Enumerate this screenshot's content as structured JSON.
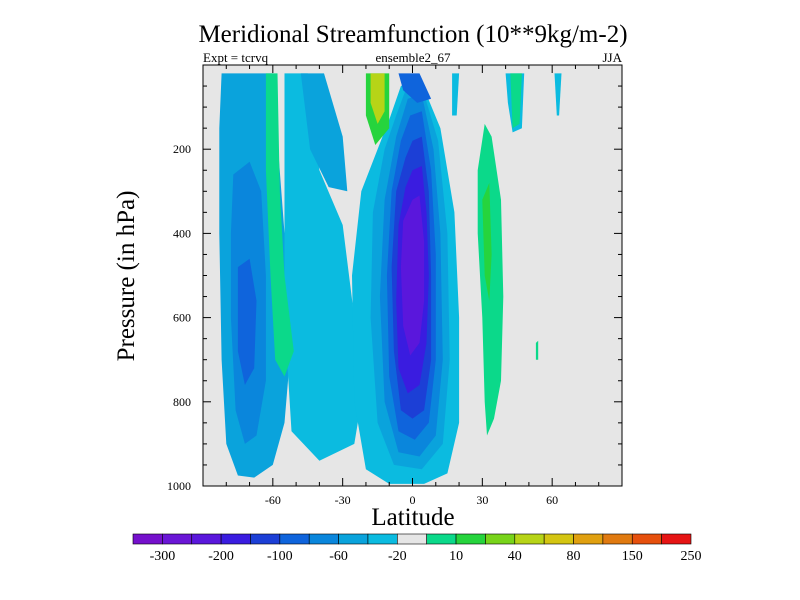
{
  "chart_data": {
    "type": "contour",
    "title": "Meridional Streamfunction (10**9kg/m-2)",
    "subtitle_left": "Expt = tcrvq",
    "subtitle_center": "ensemble2_67",
    "subtitle_right": "JJA",
    "xlabel": "Latitude",
    "ylabel": "Pressure (in hPa)",
    "xlim": [
      -90,
      90
    ],
    "ylim": [
      1000,
      0
    ],
    "x_ticks": [
      -60,
      -30,
      0,
      30,
      60
    ],
    "x_tick_labels": [
      "-60",
      "-30",
      "0",
      "30",
      "60"
    ],
    "y_ticks": [
      200,
      400,
      600,
      800,
      1000
    ],
    "y_tick_labels": [
      "200",
      "400",
      "600",
      "800",
      "1000"
    ],
    "background_color": "#e6e6e6",
    "colorbar": {
      "colors": [
        "#7510cc",
        "#6a16d6",
        "#5a17dc",
        "#3a1ce0",
        "#1c3fd6",
        "#0f64dc",
        "#0a86dc",
        "#0aa3dc",
        "#0bbbe0",
        "#e6e6e6",
        "#0bd98a",
        "#26d43d",
        "#78d41a",
        "#b7d417",
        "#d4c512",
        "#e0a010",
        "#e07a10",
        "#e6500d",
        "#e61414"
      ],
      "labels": [
        "-300",
        "-200",
        "-100",
        "-60",
        "-20",
        "10",
        "40",
        "80",
        "150",
        "250"
      ]
    },
    "regions": [
      {
        "name": "southern-cell-outer",
        "color": "#0aa3dc",
        "points": [
          [
            -82,
            20
          ],
          [
            -60,
            20
          ],
          [
            -58,
            180
          ],
          [
            -55,
            400
          ],
          [
            -52,
            650
          ],
          [
            -55,
            850
          ],
          [
            -60,
            950
          ],
          [
            -68,
            980
          ],
          [
            -75,
            975
          ],
          [
            -80,
            900
          ],
          [
            -82,
            700
          ],
          [
            -83,
            400
          ],
          [
            -83,
            150
          ]
        ]
      },
      {
        "name": "southern-cell-mid",
        "color": "#0a86dc",
        "points": [
          [
            -77,
            260
          ],
          [
            -70,
            230
          ],
          [
            -65,
            300
          ],
          [
            -63,
            500
          ],
          [
            -63,
            750
          ],
          [
            -67,
            880
          ],
          [
            -72,
            900
          ],
          [
            -76,
            820
          ],
          [
            -78,
            600
          ],
          [
            -78,
            400
          ]
        ]
      },
      {
        "name": "southern-cell-core",
        "color": "#0f64dc",
        "points": [
          [
            -75,
            480
          ],
          [
            -70,
            460
          ],
          [
            -67,
            560
          ],
          [
            -68,
            720
          ],
          [
            -72,
            760
          ],
          [
            -75,
            680
          ]
        ]
      },
      {
        "name": "southern-upper-light",
        "color": "#0bbbe0",
        "points": [
          [
            -55,
            20
          ],
          [
            -45,
            20
          ],
          [
            -40,
            250
          ],
          [
            -30,
            380
          ],
          [
            -25,
            600
          ],
          [
            -22,
            800
          ],
          [
            -25,
            900
          ],
          [
            -40,
            940
          ],
          [
            -52,
            870
          ],
          [
            -55,
            600
          ],
          [
            -55,
            300
          ]
        ]
      },
      {
        "name": "southern-subsid",
        "color": "#0aa3dc",
        "points": [
          [
            -48,
            20
          ],
          [
            -38,
            20
          ],
          [
            -30,
            170
          ],
          [
            -28,
            300
          ],
          [
            -36,
            290
          ],
          [
            -44,
            200
          ]
        ]
      },
      {
        "name": "southern-green-strip",
        "color": "#0bd98a",
        "points": [
          [
            -63,
            20
          ],
          [
            -58,
            20
          ],
          [
            -57,
            300
          ],
          [
            -55,
            500
          ],
          [
            -51,
            680
          ],
          [
            -55,
            740
          ],
          [
            -59,
            700
          ],
          [
            -61,
            500
          ],
          [
            -63,
            250
          ]
        ]
      },
      {
        "name": "central-cell-outer",
        "color": "#0bbbe0",
        "points": [
          [
            -5,
            50
          ],
          [
            3,
            30
          ],
          [
            12,
            150
          ],
          [
            18,
            350
          ],
          [
            20,
            600
          ],
          [
            20,
            850
          ],
          [
            15,
            970
          ],
          [
            5,
            995
          ],
          [
            -10,
            995
          ],
          [
            -20,
            960
          ],
          [
            -25,
            800
          ],
          [
            -26,
            500
          ],
          [
            -22,
            300
          ],
          [
            -15,
            200
          ],
          [
            -10,
            130
          ]
        ]
      },
      {
        "name": "central-cell-2",
        "color": "#0aa3dc",
        "points": [
          [
            -3,
            60
          ],
          [
            4,
            50
          ],
          [
            11,
            180
          ],
          [
            15,
            400
          ],
          [
            16,
            700
          ],
          [
            13,
            900
          ],
          [
            4,
            960
          ],
          [
            -8,
            950
          ],
          [
            -15,
            850
          ],
          [
            -18,
            600
          ],
          [
            -17,
            350
          ],
          [
            -12,
            200
          ],
          [
            -7,
            120
          ]
        ]
      },
      {
        "name": "central-cell-3",
        "color": "#0a86dc",
        "points": [
          [
            -2,
            80
          ],
          [
            4,
            70
          ],
          [
            9,
            200
          ],
          [
            12,
            400
          ],
          [
            13,
            700
          ],
          [
            10,
            880
          ],
          [
            3,
            930
          ],
          [
            -6,
            920
          ],
          [
            -12,
            800
          ],
          [
            -14,
            550
          ],
          [
            -12,
            320
          ],
          [
            -7,
            170
          ]
        ]
      },
      {
        "name": "central-cell-4",
        "color": "#0f64dc",
        "points": [
          [
            -1,
            120
          ],
          [
            4,
            110
          ],
          [
            8,
            250
          ],
          [
            10,
            450
          ],
          [
            10,
            700
          ],
          [
            7,
            850
          ],
          [
            1,
            890
          ],
          [
            -6,
            870
          ],
          [
            -10,
            740
          ],
          [
            -11,
            500
          ],
          [
            -9,
            300
          ],
          [
            -5,
            180
          ]
        ]
      },
      {
        "name": "central-cell-5",
        "color": "#1c3fd6",
        "points": [
          [
            0,
            180
          ],
          [
            4,
            170
          ],
          [
            7,
            300
          ],
          [
            8,
            500
          ],
          [
            8,
            700
          ],
          [
            5,
            820
          ],
          [
            0,
            840
          ],
          [
            -5,
            820
          ],
          [
            -8,
            680
          ],
          [
            -9,
            480
          ],
          [
            -7,
            300
          ],
          [
            -3,
            220
          ]
        ]
      },
      {
        "name": "central-cell-6",
        "color": "#3a1ce0",
        "points": [
          [
            0,
            250
          ],
          [
            4,
            240
          ],
          [
            6,
            350
          ],
          [
            7,
            500
          ],
          [
            6,
            660
          ],
          [
            3,
            760
          ],
          [
            -2,
            780
          ],
          [
            -6,
            720
          ],
          [
            -7,
            560
          ],
          [
            -6,
            380
          ],
          [
            -3,
            290
          ]
        ]
      },
      {
        "name": "central-cell-core",
        "color": "#5a17dc",
        "points": [
          [
            0,
            320
          ],
          [
            3,
            310
          ],
          [
            5,
            420
          ],
          [
            5,
            560
          ],
          [
            3,
            660
          ],
          [
            -1,
            690
          ],
          [
            -4,
            620
          ],
          [
            -5,
            480
          ],
          [
            -4,
            370
          ]
        ]
      },
      {
        "name": "central-top-dark",
        "color": "#0f64dc",
        "points": [
          [
            -6,
            20
          ],
          [
            3,
            20
          ],
          [
            8,
            80
          ],
          [
            2,
            90
          ],
          [
            -4,
            60
          ]
        ]
      },
      {
        "name": "upper-left-green",
        "color": "#26d43d",
        "points": [
          [
            -20,
            20
          ],
          [
            -10,
            20
          ],
          [
            -10,
            150
          ],
          [
            -16,
            190
          ],
          [
            -20,
            120
          ]
        ]
      },
      {
        "name": "upper-left-yellow",
        "color": "#b7d417",
        "points": [
          [
            -18,
            20
          ],
          [
            -12,
            20
          ],
          [
            -12,
            110
          ],
          [
            -15,
            140
          ],
          [
            -18,
            90
          ]
        ]
      },
      {
        "name": "right-upper-strip",
        "color": "#0bbbe0",
        "points": [
          [
            17,
            20
          ],
          [
            20,
            20
          ],
          [
            19,
            120
          ],
          [
            17,
            120
          ]
        ]
      },
      {
        "name": "right-top-light",
        "color": "#0bbbe0",
        "points": [
          [
            40,
            20
          ],
          [
            48,
            20
          ],
          [
            47,
            150
          ],
          [
            43,
            160
          ],
          [
            41,
            90
          ]
        ]
      },
      {
        "name": "right-top-green",
        "color": "#0bd98a",
        "points": [
          [
            42,
            20
          ],
          [
            47,
            20
          ],
          [
            46,
            140
          ],
          [
            43,
            150
          ]
        ]
      },
      {
        "name": "far-right-blue",
        "color": "#0bbbe0",
        "points": [
          [
            61,
            20
          ],
          [
            64,
            20
          ],
          [
            63,
            120
          ],
          [
            62,
            120
          ]
        ]
      },
      {
        "name": "right-green-strip",
        "color": "#0bd98a",
        "points": [
          [
            28,
            250
          ],
          [
            31,
            140
          ],
          [
            34,
            170
          ],
          [
            38,
            320
          ],
          [
            39,
            550
          ],
          [
            38,
            750
          ],
          [
            35,
            840
          ],
          [
            32,
            880
          ],
          [
            31,
            800
          ],
          [
            30,
            600
          ],
          [
            28,
            400
          ]
        ]
      },
      {
        "name": "right-green-mid",
        "color": "#26d43d",
        "points": [
          [
            30,
            320
          ],
          [
            33,
            280
          ],
          [
            34,
            450
          ],
          [
            33,
            560
          ],
          [
            31,
            500
          ]
        ]
      },
      {
        "name": "small-green-blob",
        "color": "#0bd98a",
        "points": [
          [
            53,
            660
          ],
          [
            54,
            655
          ],
          [
            54,
            700
          ],
          [
            53,
            700
          ]
        ]
      }
    ]
  }
}
